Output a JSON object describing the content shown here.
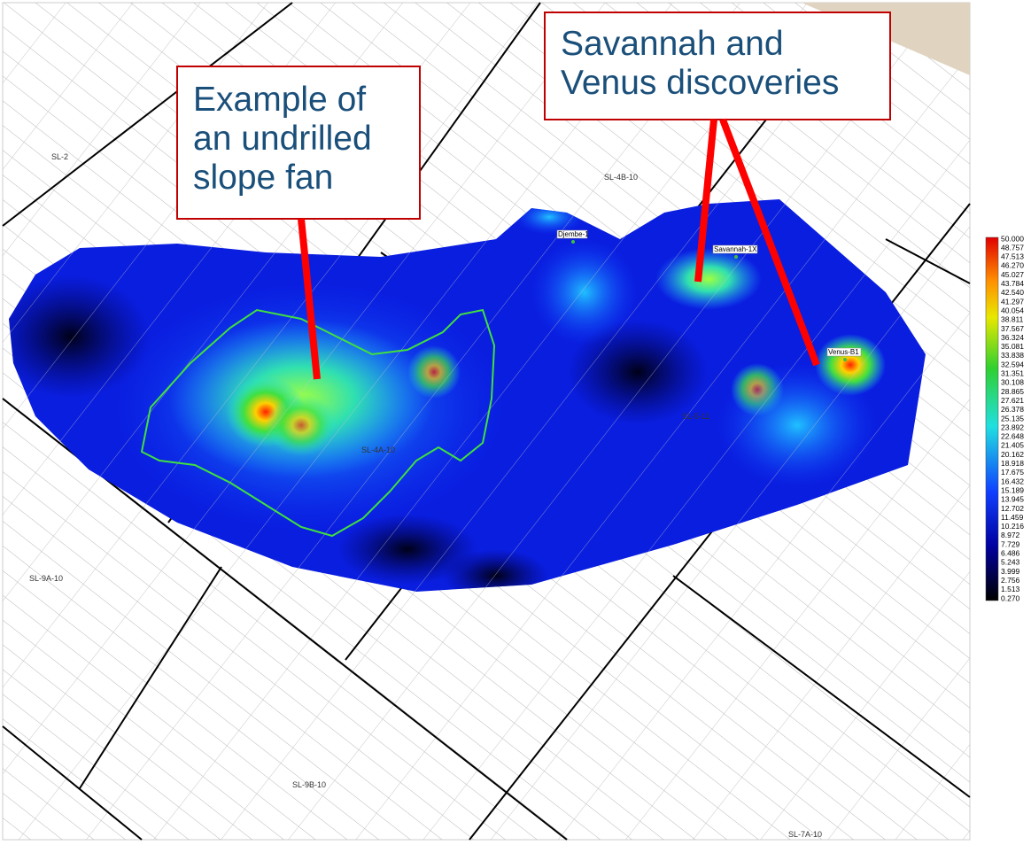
{
  "callouts": [
    {
      "lines": [
        "Example of",
        "an undrilled",
        "slope fan"
      ]
    },
    {
      "lines": [
        "Savannah and",
        "Venus discoveries"
      ]
    }
  ],
  "blocks": [
    "SL-2",
    "SL-4B-10",
    "SL-9A-10",
    "SL-4A-10",
    "SL-5-11",
    "SL-9B-10",
    "SL-7A-10"
  ],
  "wells": [
    "Djembe-1",
    "Savannah-1X",
    "Venus-B1"
  ],
  "legend": {
    "labels": [
      "50.000",
      "48.757",
      "47.513",
      "46.270",
      "45.027",
      "43.784",
      "42.540",
      "41.297",
      "40.054",
      "38.811",
      "37.567",
      "36.324",
      "35.081",
      "33.838",
      "32.594",
      "31.351",
      "30.108",
      "28.865",
      "27.621",
      "26.378",
      "25.135",
      "23.892",
      "22.648",
      "21.405",
      "20.162",
      "18.918",
      "17.675",
      "16.432",
      "15.189",
      "13.945",
      "12.702",
      "11.459",
      "10.216",
      "8.972",
      "7.729",
      "6.486",
      "5.243",
      "3.999",
      "2.756",
      "1.513",
      "0.270"
    ]
  }
}
